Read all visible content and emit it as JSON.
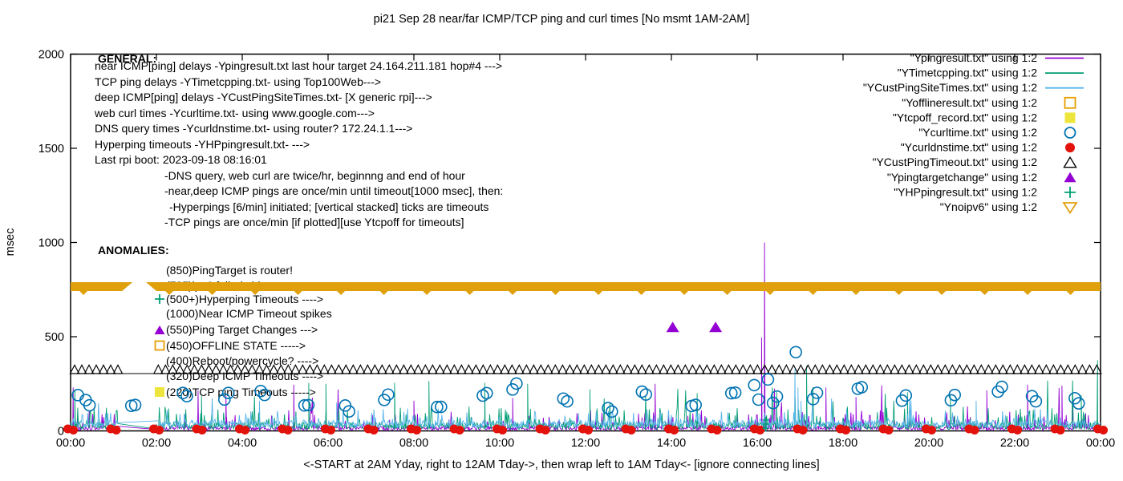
{
  "page": {
    "background": "#ffffff",
    "plot_border_color": "#000000",
    "text_color": "#000000"
  },
  "title": "pi21 Sep 28  near/far ICMP/TCP ping and curl times [No msmt 1AM-2AM]",
  "axes": {
    "y_label": "msec",
    "y_ticks": [
      "0",
      "500",
      "1000",
      "1500",
      "2000"
    ],
    "y_tick_values": [
      0,
      500,
      1000,
      1500,
      2000
    ],
    "y_range": [
      0,
      2000
    ],
    "x_tick_labels": [
      "00:00",
      "02:00",
      "04:00",
      "06:00",
      "08:00",
      "10:00",
      "12:00",
      "14:00",
      "16:00",
      "18:00",
      "20:00",
      "22:00",
      "00:00"
    ],
    "x_tick_hours": [
      0,
      2,
      4,
      6,
      8,
      10,
      12,
      14,
      16,
      18,
      20,
      22,
      24
    ],
    "x_caption": "<-START at 2AM Yday, right to 12AM Tday->, then wrap left to 1AM Tday<- [ignore connecting lines]"
  },
  "legend": {
    "position": "top-right-inside",
    "items": [
      {
        "label": "\"Ypingresult.txt\" using 1:2",
        "marker": "line",
        "color": "#9400d3"
      },
      {
        "label": "\"YTimetcpping.txt\" using 1:2",
        "marker": "line",
        "color": "#009e73"
      },
      {
        "label": "\"YCustPingSiteTimes.txt\" using 1:2",
        "marker": "line",
        "color": "#56b4e9"
      },
      {
        "label": "\"Yofflineresult.txt\" using 1:2",
        "marker": "square-open",
        "color": "#e69f00"
      },
      {
        "label": "\"Ytcpoff_record.txt\" using 1:2",
        "marker": "square-filled",
        "color": "#ede53c"
      },
      {
        "label": "\"Ycurltime.txt\" using 1:2",
        "marker": "circle-open",
        "color": "#0072b2"
      },
      {
        "label": "\"Ycurldnstime.txt\" using 1:2",
        "marker": "circle-filled",
        "color": "#e3120b"
      },
      {
        "label": "\"YCustPingTimeout.txt\" using 1:2",
        "marker": "triangle-open",
        "color": "#000000"
      },
      {
        "label": "\"Ypingtargetchange\" using 1:2",
        "marker": "triangle-filled",
        "color": "#9400d3"
      },
      {
        "label": "\"YHPpingresult.txt\" using 1:2",
        "marker": "plus",
        "color": "#009e73"
      },
      {
        "label": "\"Ynoipv6\" using 1:2",
        "marker": "triangle-down-open",
        "color": "#dfa00c"
      }
    ]
  },
  "general": {
    "heading": "GENERAL:",
    "lines": [
      {
        "text": "near ICMP[ping] delays -Ypingresult.txt last hour target 24.164.211.181 hop#4 --->",
        "indent": 0
      },
      {
        "text": "TCP ping delays -YTimetcpping.txt- using Top100Web--->",
        "indent": 0
      },
      {
        "text": "deep ICMP[ping] delays -YCustPingSiteTimes.txt- [X generic rpi]--->",
        "indent": 0
      },
      {
        "text": "web curl times -Ycurltime.txt- using www.google.com--->",
        "indent": 0
      },
      {
        "text": "DNS query times -Ycurldnstime.txt- using router? 172.24.1.1--->",
        "indent": 0
      },
      {
        "text": "Hyperping timeouts -YHPpingresult.txt- --->",
        "indent": 0
      },
      {
        "text": "Last rpi boot: 2023-09-18 08:16:01",
        "indent": 0
      },
      {
        "text": "-DNS query, web curl are twice/hr, beginnng and end of hour",
        "indent": 1
      },
      {
        "text": "-near,deep ICMP pings are once/min until timeout[1000 msec], then:",
        "indent": 1
      },
      {
        "text": "-Hyperpings [6/min] initiated; [vertical stacked] ticks are timeouts",
        "indent": 2
      },
      {
        "text": "-TCP pings are once/min [if plotted][use Ytcpoff for timeouts]",
        "indent": 1
      }
    ]
  },
  "anomalies": {
    "heading": "ANOMALIES:",
    "items": [
      {
        "text": "(850)PingTarget is router!",
        "icon": "none",
        "icon_color": ""
      },
      {
        "text": "(785)ipv6 failed chk ---->",
        "icon": "none",
        "icon_color": "",
        "hidden_behind_band": true
      },
      {
        "text": "(500+)Hyperping Timeouts ---->",
        "icon": "plus",
        "icon_color": "#009e73"
      },
      {
        "text": "(1000)Near ICMP Timeout spikes",
        "icon": "none",
        "icon_color": ""
      },
      {
        "text": "(550)Ping Target Changes --->",
        "icon": "triangle-filled",
        "icon_color": "#9400d3"
      },
      {
        "text": "(450)OFFLINE STATE ----->",
        "icon": "square-open",
        "icon_color": "#e69f00"
      },
      {
        "text": "(400)Reboot/powercycle? ---->",
        "icon": "none",
        "icon_color": ""
      },
      {
        "text": "(320)Deep ICMP Timeouts ---->",
        "icon": "none",
        "icon_color": ""
      },
      {
        "text": "(220)TCP ping Timeouts ----->",
        "icon": "square-filled",
        "icon_color": "#ede53c"
      }
    ]
  },
  "chart_data": {
    "type": "line",
    "x_range_hours": [
      0,
      24
    ],
    "y_range_msec": [
      0,
      2000
    ],
    "grid": false,
    "no_measurement_gap_hours": [
      1.1,
      2.05
    ],
    "noise_seed": 42,
    "noise_series": [
      {
        "name": "near-icmp-ping-Ypingresult",
        "color": "#9400d3",
        "base": [
          3,
          22
        ],
        "spike": {
          "prob": 0.1,
          "min": 40,
          "max": 110
        },
        "rare": {
          "prob": 0.01,
          "min": 120,
          "max": 260
        },
        "explicit_spikes": [
          [
            0.06,
            230
          ],
          [
            2.97,
            215
          ],
          [
            3.62,
            185
          ],
          [
            5.2,
            245
          ],
          [
            8.0,
            160
          ],
          [
            10.3,
            175
          ],
          [
            13.62,
            250
          ],
          [
            16.1,
            495
          ],
          [
            16.17,
            1000
          ],
          [
            17.6,
            230
          ],
          [
            18.3,
            180
          ],
          [
            21.35,
            215
          ],
          [
            22.3,
            245
          ],
          [
            23.1,
            240
          ],
          [
            23.35,
            210
          ]
        ]
      },
      {
        "name": "tcp-ping-YTimetcpping",
        "color": "#009e73",
        "base": [
          8,
          38
        ],
        "spike": {
          "prob": 0.09,
          "min": 55,
          "max": 130
        },
        "rare": {
          "prob": 0.01,
          "min": 140,
          "max": 280
        },
        "explicit_spikes": [
          [
            0.1,
            220
          ],
          [
            3.05,
            185
          ],
          [
            5.55,
            255
          ],
          [
            5.95,
            250
          ],
          [
            7.55,
            255
          ],
          [
            8.35,
            265
          ],
          [
            9.65,
            255
          ],
          [
            10.65,
            250
          ],
          [
            12.1,
            220
          ],
          [
            14.6,
            200
          ],
          [
            16.45,
            210
          ],
          [
            17.15,
            345
          ],
          [
            19.5,
            205
          ],
          [
            20.5,
            190
          ],
          [
            23.55,
            190
          ],
          [
            23.93,
            375
          ]
        ]
      },
      {
        "name": "deep-icmp-YCustPingSiteTimes",
        "color": "#56b4e9",
        "base": [
          15,
          42
        ],
        "spike": {
          "prob": 0.07,
          "min": 60,
          "max": 120
        },
        "rare": {
          "prob": 0.006,
          "min": 130,
          "max": 175
        },
        "explicit_spikes": [
          [
            4.4,
            160
          ],
          [
            6.2,
            150
          ],
          [
            16.88,
            330
          ],
          [
            16.95,
            230
          ],
          [
            17.02,
            160
          ],
          [
            21.1,
            160
          ]
        ]
      }
    ],
    "curl_circles": {
      "name": "web-curl-Ycurltime",
      "color": "#0072b2",
      "pairs_per_hour": 1,
      "typical_msec": [
        100,
        230
      ],
      "outliers": [
        [
          0.17,
          190
        ],
        [
          15.93,
          243
        ],
        [
          16.03,
          166
        ],
        [
          16.25,
          273
        ],
        [
          16.9,
          418
        ]
      ]
    },
    "dns_dots": {
      "name": "dns-query-Ycurldnstime",
      "color": "#e3120b",
      "every_hour": true,
      "msec": 6
    },
    "deep_icmp_timeout_row": {
      "name": "YCustPingTimeout",
      "color": "#000000",
      "msec": 320,
      "segments_hours": [
        [
          0,
          1.12
        ],
        [
          1.95,
          24
        ]
      ],
      "connecting_line_full_width": true
    },
    "noipv6_band": {
      "name": "Ynoipv6",
      "color": "#dfa00c",
      "msec_center": 785,
      "segments_hours": [
        [
          0,
          1.2
        ],
        [
          2.0,
          24
        ]
      ]
    },
    "ping_target_changes": {
      "name": "Ypingtargetchange",
      "color": "#9400d3",
      "points": [
        [
          14.03,
          550
        ],
        [
          15.03,
          550
        ]
      ]
    },
    "hyperping_timeouts": {
      "name": "YHPpingresult",
      "color": "#009e73",
      "points": [
        [
          16.2,
          14
        ],
        [
          16.2,
          36
        ],
        [
          16.2,
          58
        ]
      ]
    },
    "near_icmp_timeout_spike": {
      "t_hours": 16.17,
      "msec": 1000
    }
  }
}
